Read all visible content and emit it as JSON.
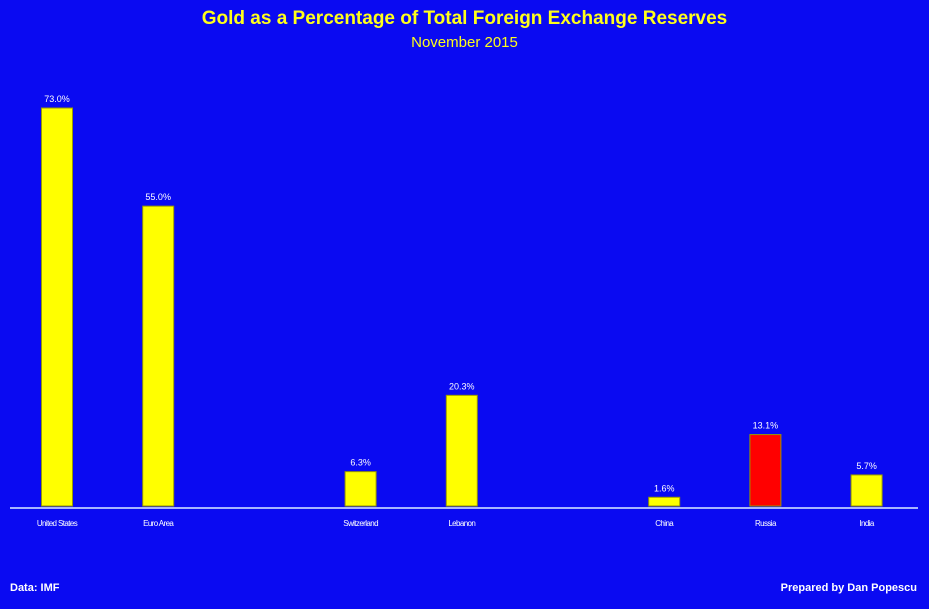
{
  "chart_data": {
    "type": "bar",
    "title": "Gold as a Percentage of Total Foreign Exchange Reserves",
    "subtitle": "November 2015",
    "xlabel": "",
    "ylabel": "",
    "ylim": [
      0,
      73
    ],
    "grid": false,
    "categories": [
      "United States",
      "Euro Area",
      "",
      "Switzerland",
      "Lebanon",
      "",
      "China",
      "Russia",
      "India"
    ],
    "values": [
      73.0,
      55.0,
      null,
      6.3,
      20.3,
      null,
      1.6,
      13.1,
      5.7
    ],
    "data_labels": [
      "73.0%",
      "55.0%",
      "",
      "6.3%",
      "20.3%",
      "",
      "1.6%",
      "13.1%",
      "5.7%"
    ],
    "colors": [
      "#ffff00",
      "#ffff00",
      "",
      "#ffff00",
      "#ffff00",
      "",
      "#ffff00",
      "#ff0000",
      "#ffff00"
    ]
  },
  "footer": {
    "source": "Data: IMF",
    "credit": "Prepared by Dan Popescu"
  },
  "colors": {
    "background": "#0a0af2",
    "axis": "#a8b4ff",
    "text": "#ffffff",
    "title": "#ffff1a"
  }
}
